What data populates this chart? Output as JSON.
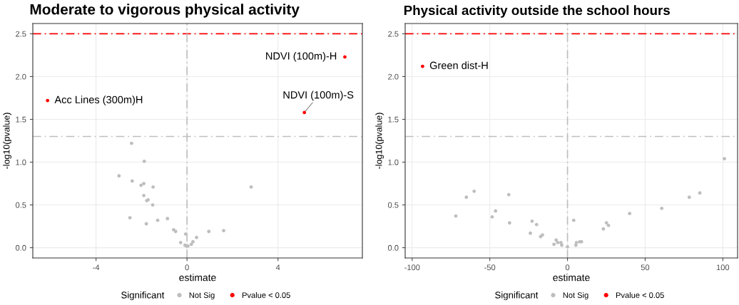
{
  "chart_data": [
    {
      "type": "scatter",
      "title": "Moderate to vigorous physical activity",
      "xlabel": "estimate",
      "ylabel": "-log10(pvalue)",
      "legend_title": "Significant",
      "legend": "bottom",
      "grid": true,
      "marker": "circle",
      "xlim": [
        -6.78,
        7.71
      ],
      "xticks": [
        -4,
        0,
        4
      ],
      "ylim": [
        -0.12,
        2.62
      ],
      "yticks": [
        {
          "value": 0,
          "label": "0.0"
        },
        {
          "value": 0.5,
          "label": "0.5"
        },
        {
          "value": 1,
          "label": "1.0"
        },
        {
          "value": 1.5,
          "label": "1.5"
        },
        {
          "value": 2,
          "label": "2.0"
        },
        {
          "value": 2.5,
          "label": "2.5"
        }
      ],
      "series": [
        {
          "name": "Not Sig",
          "color": "#bebebe",
          "x": [
            -2.44,
            -1.88,
            -2.99,
            -2.41,
            -2.02,
            -1.9,
            -1.49,
            -1.9,
            -1.77,
            -1.71,
            -1.51,
            -2.51,
            -1.79,
            -1.29,
            -0.86,
            -0.59,
            -0.5,
            -0.06,
            -0.28,
            -0.09,
            -0.02,
            0.04,
            0.19,
            0.26,
            0.42,
            0.96,
            1.61,
            2.82
          ],
          "values": [
            1.22,
            1.01,
            0.84,
            0.78,
            0.73,
            0.75,
            0.71,
            0.61,
            0.55,
            0.56,
            0.5,
            0.35,
            0.28,
            0.32,
            0.34,
            0.21,
            0.19,
            0.16,
            0.06,
            0.03,
            0.02,
            0.02,
            0.04,
            0.07,
            0.12,
            0.19,
            0.2,
            0.71
          ]
        },
        {
          "name": "Pvalue < 0.05",
          "color": "#ff0000",
          "x": [
            -6.13,
            6.94,
            5.16
          ],
          "values": [
            1.72,
            2.23,
            1.58
          ]
        }
      ],
      "ref_lines": [
        {
          "axis": "y",
          "value": 2.5,
          "color": "#ff0000",
          "line_style": "dashdot"
        },
        {
          "axis": "y",
          "value": 1.3,
          "color": "#bebebe",
          "line_style": "dashdot"
        },
        {
          "axis": "x",
          "value": 0,
          "color": "#bebebe",
          "line_style": "dashdot"
        }
      ],
      "annotations": [
        {
          "text": "Acc Lines (300m)H",
          "x": -6.13,
          "y": 1.72
        },
        {
          "text": "NDVI (100m)-H",
          "x": 6.94,
          "y": 2.23
        },
        {
          "text": "NDVI (100m)-S",
          "x": 5.16,
          "y": 1.58
        }
      ]
    },
    {
      "type": "scatter",
      "title": "Physical activity outside the school hours",
      "xlabel": "estimate",
      "ylabel": "-log10(pvalue)",
      "legend_title": "Significant",
      "legend": "bottom",
      "grid": true,
      "marker": "circle",
      "xlim": [
        -104.5,
        109.5
      ],
      "xticks": [
        -100,
        -50,
        0,
        50,
        100
      ],
      "ylim": [
        -0.12,
        2.62
      ],
      "yticks": [
        {
          "value": 0,
          "label": "0.0"
        },
        {
          "value": 0.5,
          "label": "0.5"
        },
        {
          "value": 1,
          "label": "1.0"
        },
        {
          "value": 1.5,
          "label": "1.5"
        },
        {
          "value": 2,
          "label": "2.0"
        },
        {
          "value": 2.5,
          "label": "2.5"
        }
      ],
      "series": [
        {
          "name": "Not Sig",
          "color": "#bebebe",
          "x": [
            -71.9,
            -65.1,
            -60.1,
            -48.5,
            -46.3,
            -37.8,
            -37.3,
            -23.9,
            -22.8,
            -19.9,
            -17.3,
            -16.1,
            -8.7,
            -7.3,
            -6.3,
            -4.2,
            -3.7,
            0,
            4.0,
            5.4,
            5.8,
            7.9,
            9.0,
            23.1,
            25.1,
            26.4,
            40,
            60.7,
            78.4,
            85.2,
            101
          ],
          "values": [
            0.37,
            0.59,
            0.66,
            0.36,
            0.43,
            0.62,
            0.29,
            0.17,
            0.31,
            0.27,
            0.13,
            0.15,
            0.04,
            0.09,
            0.06,
            0.06,
            0.03,
            0.01,
            0.32,
            0.03,
            0.06,
            0.07,
            0.07,
            0.22,
            0.29,
            0.26,
            0.4,
            0.46,
            0.59,
            0.64,
            1.04
          ]
        },
        {
          "name": "Pvalue < 0.05",
          "color": "#ff0000",
          "x": [
            -93.3
          ],
          "values": [
            2.12
          ]
        }
      ],
      "ref_lines": [
        {
          "axis": "y",
          "value": 2.5,
          "color": "#ff0000",
          "line_style": "dashdot"
        },
        {
          "axis": "y",
          "value": 1.3,
          "color": "#bebebe",
          "line_style": "dashdot"
        },
        {
          "axis": "x",
          "value": 0,
          "color": "#bebebe",
          "line_style": "dashdot"
        }
      ],
      "annotations": [
        {
          "text": "Green dist-H",
          "x": -93.3,
          "y": 2.12
        }
      ]
    }
  ]
}
